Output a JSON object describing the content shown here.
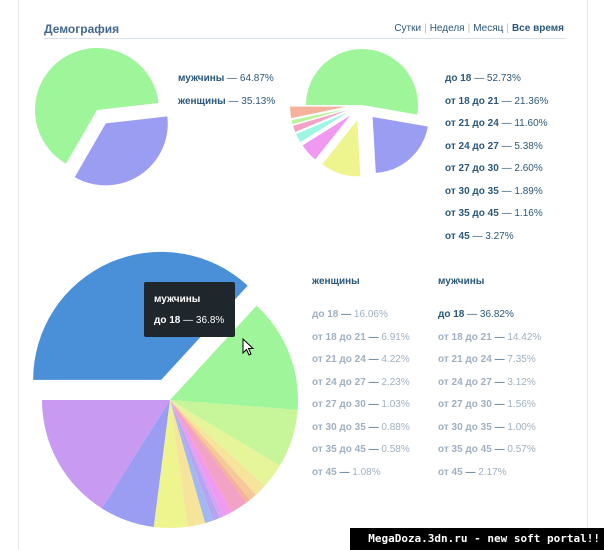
{
  "header": {
    "title": "Демография",
    "periods": [
      "Сутки",
      "Неделя",
      "Месяц",
      "Все время"
    ],
    "active_period": 3
  },
  "tooltip": {
    "line1": "мужчины",
    "line2_label": "до 18",
    "line2_value": "36.8%"
  },
  "watermark": "MegaDoza.3dn.ru - new soft portal!!",
  "chart_data": [
    {
      "type": "pie",
      "series_labels": [
        "мужчины",
        "женщины"
      ],
      "values": [
        64.87,
        35.13
      ],
      "value_text": [
        "64.87%",
        "35.13%"
      ],
      "colors": [
        "#9ff59a",
        "#9a9df2"
      ],
      "exploded": [
        1
      ]
    },
    {
      "type": "pie",
      "series_labels": [
        "до 18",
        "от 18 до 21",
        "от 21 до 24",
        "от 24 до 27",
        "от 27 до 30",
        "от 30 до 35",
        "от 35 до 45",
        "от 45"
      ],
      "values": [
        52.73,
        21.36,
        11.6,
        5.38,
        2.6,
        1.89,
        1.16,
        3.27
      ],
      "value_text": [
        "52.73%",
        "21.36%",
        "11.60%",
        "5.38%",
        "2.60%",
        "1.89%",
        "1.16%",
        "3.27%"
      ],
      "colors": [
        "#9ff59a",
        "#9a9df2",
        "#eef58f",
        "#ef9af0",
        "#9ef5e4",
        "#f2a2c4",
        "#b8f59a",
        "#f5b29a"
      ],
      "exploded": [
        1,
        2,
        3,
        4,
        5,
        6,
        7
      ]
    },
    {
      "type": "pie",
      "series": [
        {
          "name": "женщины",
          "labels": [
            "до 18",
            "от 18 до 21",
            "от 21 до 24",
            "от 24 до 27",
            "от 27 до 30",
            "от 30 до 35",
            "от 35 до 45",
            "от 45"
          ],
          "values": [
            16.06,
            6.91,
            4.22,
            2.23,
            1.03,
            0.88,
            0.58,
            1.08
          ],
          "value_text": [
            "16.06%",
            "6.91%",
            "4.22%",
            "2.23%",
            "1.03%",
            "0.88%",
            "0.58%",
            "1.08%"
          ]
        },
        {
          "name": "мужчины",
          "labels": [
            "до 18",
            "от 18 до 21",
            "от 21 до 24",
            "от 24 до 27",
            "от 27 до 30",
            "от 30 до 35",
            "от 35 до 45",
            "от 45"
          ],
          "values": [
            36.82,
            14.42,
            7.35,
            3.12,
            1.56,
            1.0,
            0.57,
            2.17
          ],
          "value_text": [
            "36.82%",
            "14.42%",
            "7.35%",
            "3.12%",
            "1.56%",
            "1.00%",
            "0.57%",
            "2.17%"
          ]
        }
      ],
      "slice_order": [
        [
          "мужчины",
          "до 18",
          36.82,
          "#4a90d9"
        ],
        [
          "мужчины",
          "от 18 до 21",
          14.42,
          "#9ff59a"
        ],
        [
          "мужчины",
          "от 21 до 24",
          7.35,
          "#c6f59a"
        ],
        [
          "мужчины",
          "от 24 до 27",
          3.12,
          "#e6f59a"
        ],
        [
          "мужчины",
          "от 27 до 30",
          1.56,
          "#f5e49a"
        ],
        [
          "мужчины",
          "от 30 до 35",
          1.0,
          "#f5c99a"
        ],
        [
          "мужчины",
          "от 35 до 45",
          0.57,
          "#f5b29a"
        ],
        [
          "мужчины",
          "от 45",
          2.17,
          "#f2a2c4"
        ],
        [
          "женщины",
          "от 45",
          1.08,
          "#ef9af0"
        ],
        [
          "женщины",
          "от 35 до 45",
          0.58,
          "#d9a2f2"
        ],
        [
          "женщины",
          "от 30 до 35",
          0.88,
          "#b8a2f2"
        ],
        [
          "женщины",
          "от 27 до 30",
          1.03,
          "#a2b8f2"
        ],
        [
          "женщины",
          "от 24 до 27",
          2.23,
          "#f5e49a"
        ],
        [
          "женщины",
          "от 21 до 24",
          4.22,
          "#eef58f"
        ],
        [
          "женщины",
          "от 18 до 21",
          6.91,
          "#9a9df2"
        ],
        [
          "женщины",
          "до 18",
          16.06,
          "#c89af2"
        ]
      ]
    }
  ]
}
